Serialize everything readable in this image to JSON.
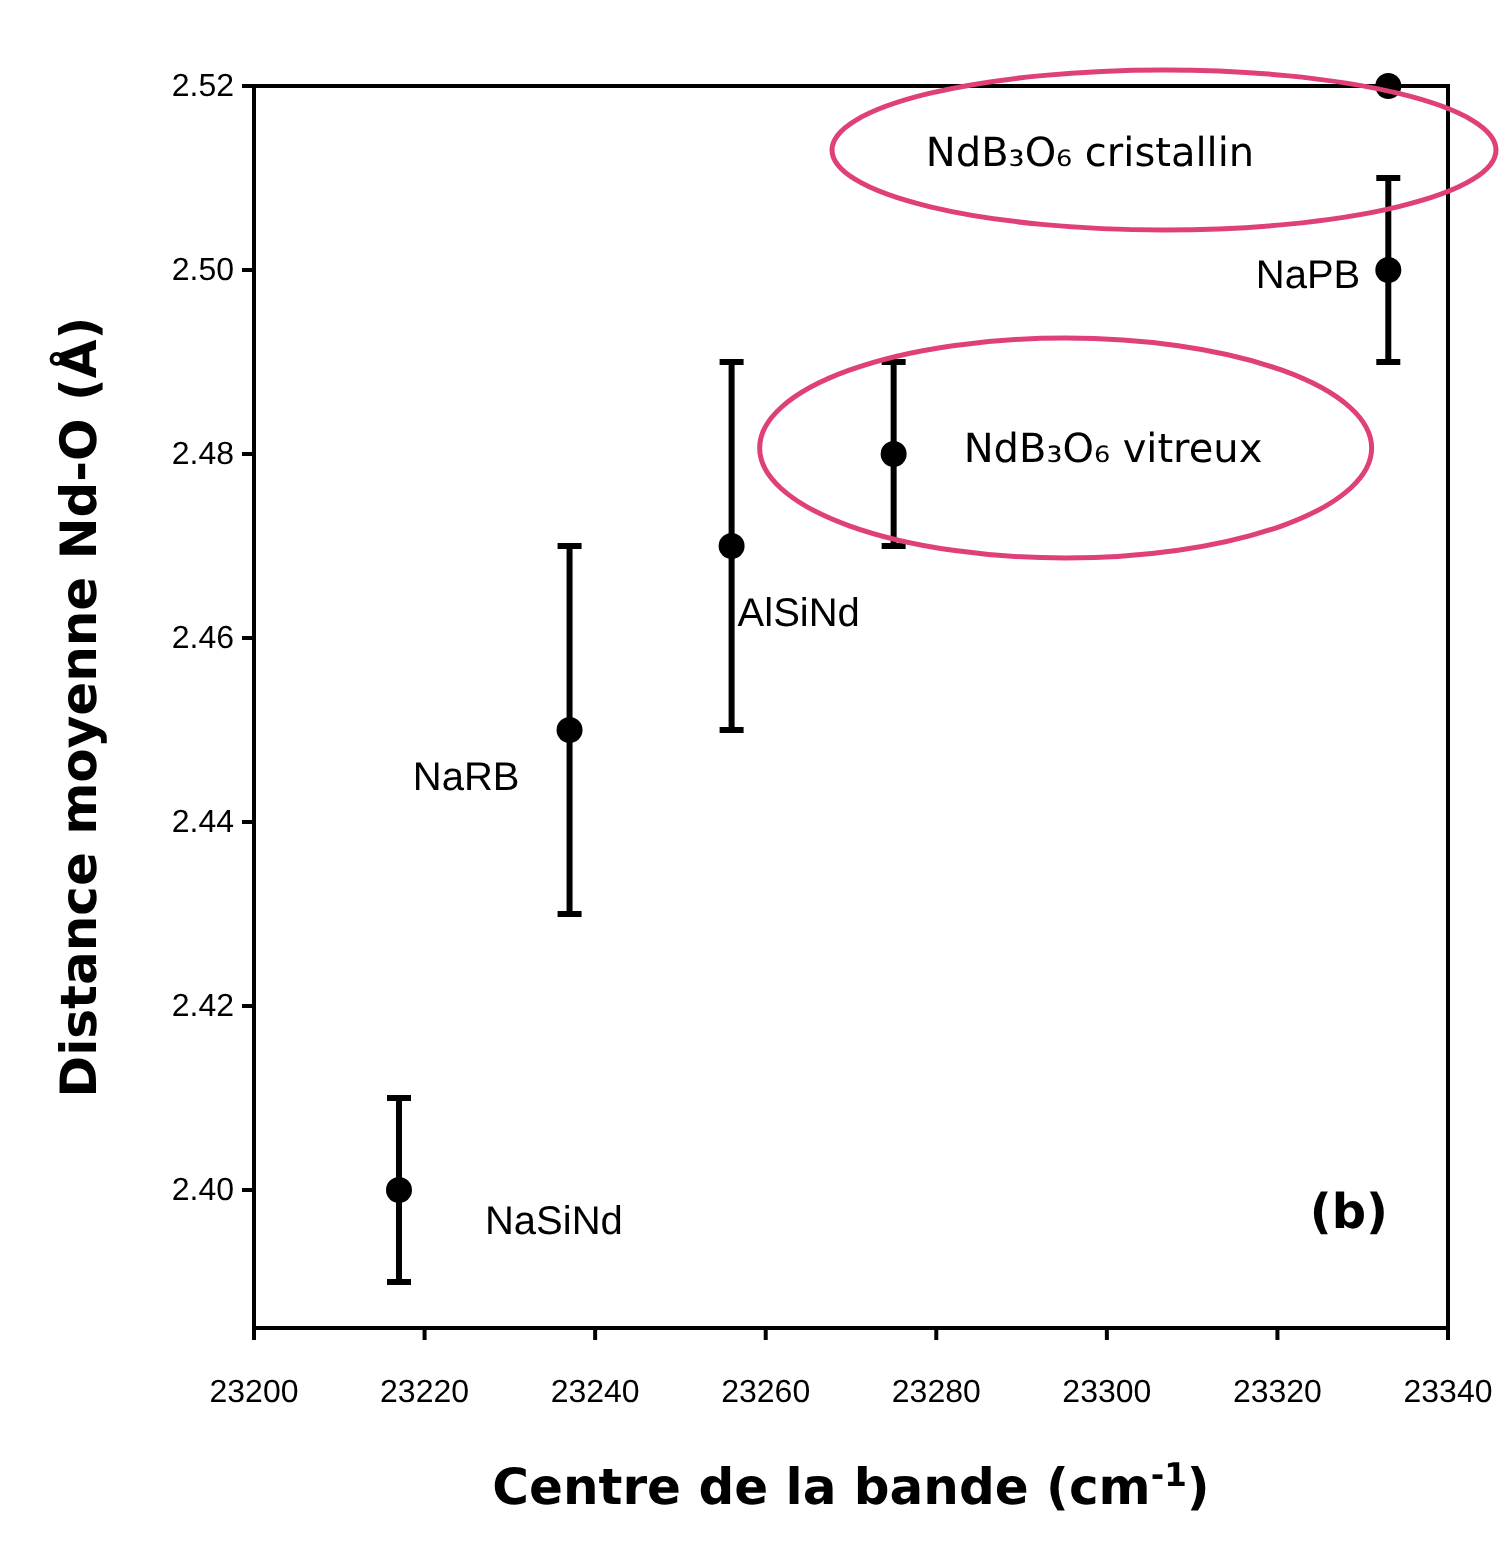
{
  "chart_data": {
    "type": "scatter",
    "xlabel": "Centre de la bande (cm$^{-1}$)",
    "ylabel": "Distance moyenne Nd-O (Å)",
    "x": [
      23217,
      23237,
      23256,
      23275,
      23333,
      23333
    ],
    "values": [
      2.4,
      2.45,
      2.47,
      2.48,
      2.5,
      2.52
    ],
    "errors": [
      0.01,
      0.02,
      0.02,
      0.01,
      0.01,
      null
    ],
    "color": "#000000",
    "marker": "circle",
    "xlim": [
      23200,
      23340
    ],
    "xticks": [
      23200,
      23220,
      23240,
      23260,
      23280,
      23300,
      23320,
      23340
    ],
    "ylim": [
      2.385,
      2.52
    ],
    "yticks": [
      {
        "value": 2.4,
        "label": "2.40"
      },
      {
        "value": 2.42,
        "label": "2.42"
      },
      {
        "value": 2.44,
        "label": "2.44"
      },
      {
        "value": 2.46,
        "label": "2.46"
      },
      {
        "value": 2.48,
        "label": "2.48"
      },
      {
        "value": 2.5,
        "label": "2.50"
      },
      {
        "value": 2.52,
        "label": "2.52"
      }
    ],
    "grid": false,
    "annotations": [
      {
        "text": "NaSiNd",
        "x": 23217,
        "y": 2.4
      },
      {
        "text": "NaRB",
        "x": 23237,
        "y": 2.45
      },
      {
        "text": "AlSiNd",
        "x": 23256,
        "y": 2.47
      },
      {
        "text": "NdB₃O₆ vitreux",
        "x": 23275,
        "y": 2.48
      },
      {
        "text": "NaPB",
        "x": 23333,
        "y": 2.5
      },
      "NdB₃O₆ cristallin",
      "(b)"
    ]
  }
}
